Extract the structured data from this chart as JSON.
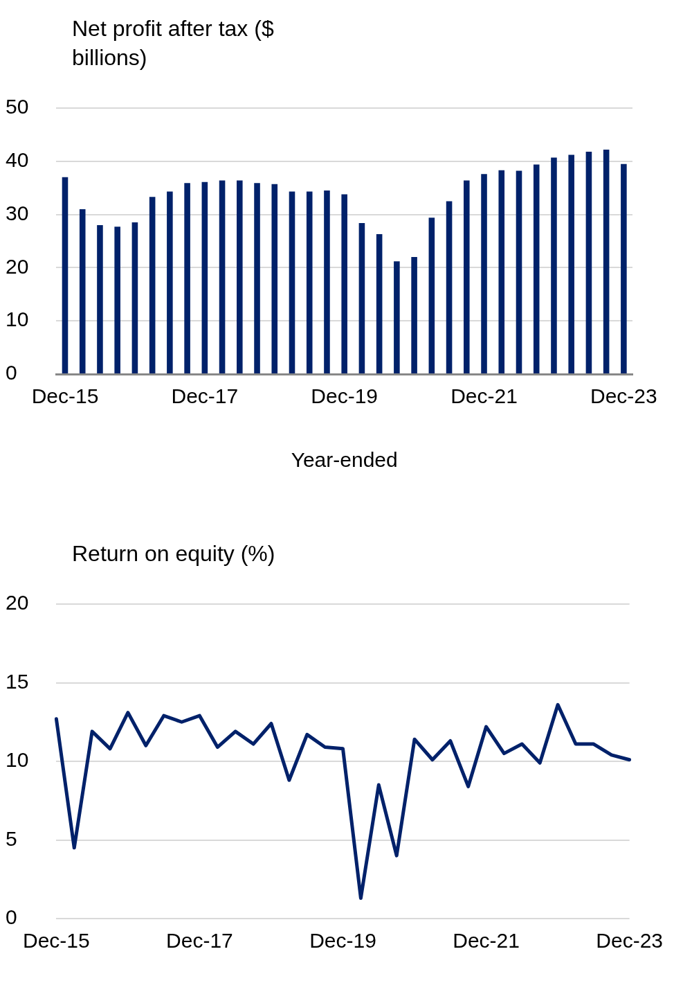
{
  "chart_data": [
    {
      "type": "bar",
      "title": "Net profit after tax ($ billions)",
      "xlabel": "Year-ended",
      "color": "#00216a",
      "grid": "y",
      "categories": [
        "Dec-15",
        null,
        null,
        null,
        null,
        null,
        null,
        null,
        "Dec-17",
        null,
        null,
        null,
        null,
        null,
        null,
        null,
        "Dec-19",
        null,
        null,
        null,
        null,
        null,
        null,
        null,
        "Dec-21",
        null,
        null,
        null,
        null,
        null,
        null,
        null,
        "Dec-23"
      ],
      "values": [
        37,
        31,
        28,
        27.7,
        28.5,
        33.3,
        34.3,
        35.9,
        36.1,
        36.4,
        36.4,
        35.9,
        35.7,
        34.3,
        34.3,
        34.5,
        33.8,
        28.4,
        26.3,
        21.2,
        22,
        29.4,
        32.5,
        36.4,
        37.6,
        38.3,
        38.2,
        39.4,
        40.7,
        41.2,
        41.8,
        42.2,
        39.5
      ],
      "ylim": [
        0,
        50
      ],
      "yticks": [
        0,
        10,
        20,
        30,
        40,
        50
      ]
    },
    {
      "type": "line",
      "title": "Return on equity (%)",
      "color": "#00216a",
      "grid": "y",
      "categories": [
        "Dec-15",
        null,
        null,
        null,
        null,
        null,
        null,
        null,
        "Dec-17",
        null,
        null,
        null,
        null,
        null,
        null,
        null,
        "Dec-19",
        null,
        null,
        null,
        null,
        null,
        null,
        null,
        "Dec-21",
        null,
        null,
        null,
        null,
        null,
        null,
        null,
        "Dec-23"
      ],
      "values": [
        12.7,
        4.5,
        11.9,
        10.8,
        13.1,
        11.0,
        12.9,
        12.5,
        12.9,
        10.9,
        11.9,
        11.1,
        12.4,
        8.8,
        11.7,
        10.9,
        10.8,
        1.3,
        8.5,
        4.0,
        11.4,
        10.1,
        11.3,
        8.4,
        12.2,
        10.5,
        11.1,
        9.9,
        13.6,
        11.1,
        11.1,
        10.4,
        10.1
      ],
      "ylim": [
        0,
        20
      ],
      "yticks": [
        0,
        5,
        10,
        15,
        20
      ]
    }
  ]
}
